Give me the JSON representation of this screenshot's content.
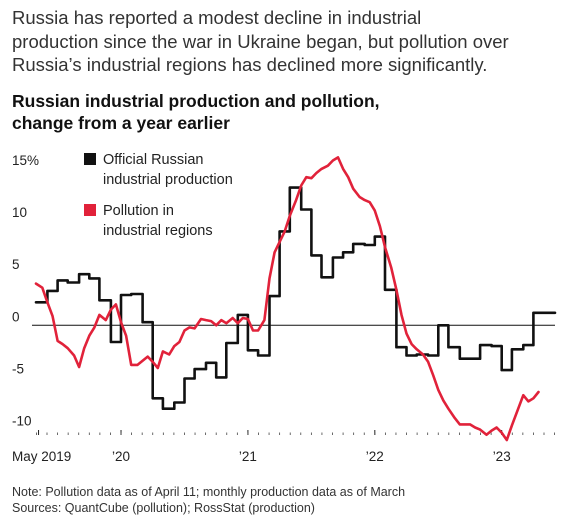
{
  "intro": {
    "lines": [
      "Russia has reported a modest decline in industrial",
      "production since the war in Ukraine began, but pollution over",
      "Russia’s industrial regions has declined more significantly."
    ]
  },
  "chart_data": {
    "type": "line",
    "title_lines": [
      "Russian industrial production and pollution,",
      "change from a year earlier"
    ],
    "ylim": [
      -11,
      17
    ],
    "xlim": [
      2019.33,
      2023.42
    ],
    "y_ticks": [
      {
        "value": 15,
        "label": "15%"
      },
      {
        "value": 10,
        "label": "10"
      },
      {
        "value": 5,
        "label": "5"
      },
      {
        "value": 0,
        "label": "0"
      },
      {
        "value": -5,
        "label": "-5"
      },
      {
        "value": -10,
        "label": "-10"
      }
    ],
    "x_ticks": [
      {
        "value": 2019.35,
        "label": "May 2019"
      },
      {
        "value": 2020.0,
        "label": "’20"
      },
      {
        "value": 2021.0,
        "label": "’21"
      },
      {
        "value": 2022.0,
        "label": "’22"
      },
      {
        "value": 2023.0,
        "label": "’23"
      }
    ],
    "zero_line": 0,
    "grid": false,
    "legend_placement": "top-left",
    "series": [
      {
        "name_lines": [
          "Official Russian",
          "industrial production"
        ],
        "color": "#111111",
        "style": "step",
        "x": [
          2019.33,
          2019.42,
          2019.5,
          2019.58,
          2019.67,
          2019.75,
          2019.83,
          2019.92,
          2020.0,
          2020.08,
          2020.17,
          2020.25,
          2020.33,
          2020.42,
          2020.5,
          2020.58,
          2020.67,
          2020.75,
          2020.83,
          2020.92,
          2021.0,
          2021.08,
          2021.17,
          2021.25,
          2021.33,
          2021.42,
          2021.5,
          2021.58,
          2021.67,
          2021.75,
          2021.83,
          2021.92,
          2022.0,
          2022.08,
          2022.17,
          2022.25,
          2022.33,
          2022.42,
          2022.5,
          2022.58,
          2022.67,
          2022.75,
          2022.83,
          2022.92,
          2023.0,
          2023.08,
          2023.17,
          2023.25,
          2023.33
        ],
        "values": [
          2.2,
          3.3,
          4.3,
          4.1,
          4.9,
          4.5,
          2.4,
          -1.6,
          2.9,
          3.0,
          0.3,
          -7.0,
          -8.0,
          -7.4,
          -5.1,
          -4.2,
          -3.6,
          -5.0,
          -1.7,
          1.0,
          -2.4,
          -2.9,
          2.8,
          9.0,
          13.2,
          11.1,
          6.7,
          4.6,
          6.5,
          7.0,
          7.8,
          7.7,
          8.5,
          3.4,
          -2.1,
          -2.9,
          -2.8,
          -2.9,
          0.0,
          -2.1,
          -3.2,
          -3.2,
          -1.9,
          -2.0,
          -4.3,
          -2.3,
          -1.9,
          1.2,
          1.2
        ]
      },
      {
        "name_lines": [
          "Pollution in",
          "industrial regions"
        ],
        "color": "#e1223a",
        "style": "smooth",
        "x": [
          2019.33,
          2019.38,
          2019.42,
          2019.46,
          2019.5,
          2019.54,
          2019.58,
          2019.63,
          2019.67,
          2019.71,
          2019.75,
          2019.79,
          2019.83,
          2019.88,
          2019.92,
          2019.96,
          2020.0,
          2020.04,
          2020.08,
          2020.13,
          2020.17,
          2020.21,
          2020.25,
          2020.29,
          2020.33,
          2020.38,
          2020.42,
          2020.46,
          2020.5,
          2020.54,
          2020.58,
          2020.63,
          2020.67,
          2020.71,
          2020.75,
          2020.79,
          2020.83,
          2020.88,
          2020.92,
          2020.96,
          2021.0,
          2021.04,
          2021.08,
          2021.13,
          2021.17,
          2021.21,
          2021.25,
          2021.29,
          2021.33,
          2021.38,
          2021.42,
          2021.46,
          2021.5,
          2021.54,
          2021.58,
          2021.63,
          2021.67,
          2021.71,
          2021.75,
          2021.79,
          2021.83,
          2021.88,
          2021.92,
          2021.96,
          2022.0,
          2022.04,
          2022.08,
          2022.13,
          2022.17,
          2022.21,
          2022.25,
          2022.29,
          2022.33,
          2022.38,
          2022.42,
          2022.46,
          2022.5,
          2022.54,
          2022.58,
          2022.63,
          2022.67,
          2022.71,
          2022.75,
          2022.79,
          2022.83,
          2022.88,
          2022.92,
          2022.96,
          2023.0,
          2023.04,
          2023.08,
          2023.13,
          2023.17,
          2023.21,
          2023.25,
          2023.29
        ],
        "values": [
          4.0,
          3.6,
          2.2,
          0.9,
          -1.5,
          -1.8,
          -2.2,
          -2.9,
          -4.0,
          -2.2,
          -1.0,
          -0.2,
          1.0,
          0.5,
          1.5,
          2.0,
          0.3,
          -1.0,
          -3.8,
          -3.8,
          -3.4,
          -3.0,
          -3.5,
          -4.1,
          -2.5,
          -2.8,
          -2.0,
          -1.6,
          -0.5,
          -0.2,
          -0.3,
          0.6,
          0.5,
          0.4,
          0.0,
          0.5,
          0.2,
          0.7,
          0.2,
          0.7,
          0.6,
          -0.5,
          -0.5,
          0.5,
          4.5,
          7.0,
          8.0,
          9.0,
          10.5,
          12.0,
          13.4,
          14.2,
          14.1,
          14.6,
          15.0,
          15.3,
          15.8,
          16.1,
          15.0,
          14.2,
          13.1,
          12.3,
          12.0,
          11.8,
          11.0,
          9.5,
          7.5,
          5.5,
          3.4,
          1.0,
          -0.8,
          -1.8,
          -2.3,
          -2.8,
          -3.5,
          -4.8,
          -6.2,
          -7.2,
          -8.0,
          -8.9,
          -9.5,
          -9.5,
          -9.5,
          -9.8,
          -10.0,
          -10.5,
          -10.1,
          -9.8,
          -10.3,
          -11.0,
          -9.6,
          -8.0,
          -6.7,
          -7.3,
          -7.0,
          -6.4
        ]
      }
    ]
  },
  "notes": {
    "line1": "Note: Pollution data as of April 11; monthly production data as of March",
    "line2": "Sources: QuantCube (pollution); RossStat (production)"
  }
}
